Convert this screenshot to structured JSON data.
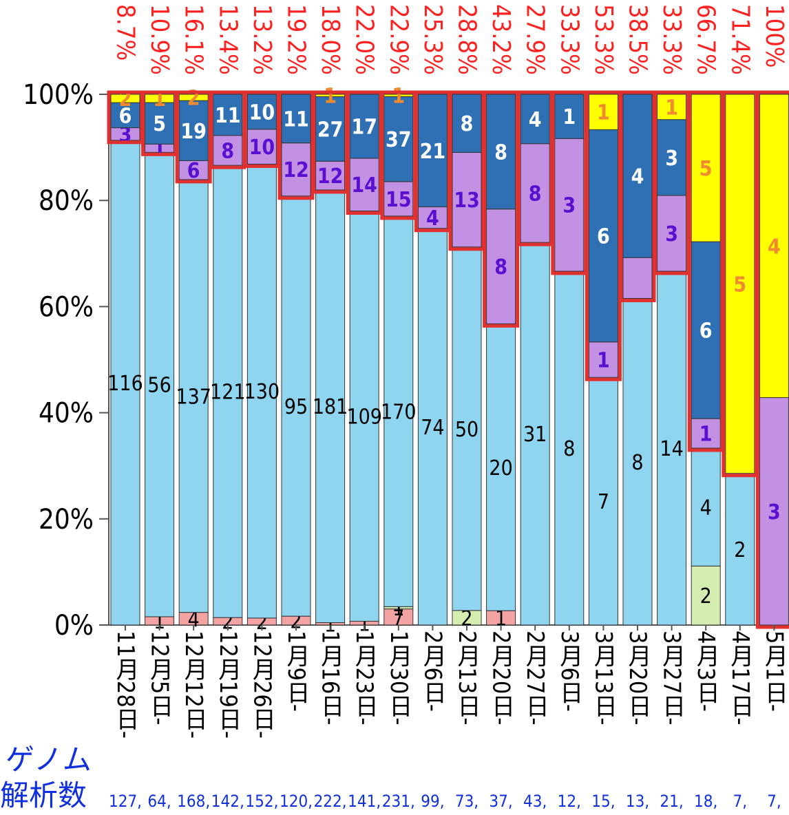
{
  "chart_data": {
    "type": "stacked_percent_bar",
    "categories": [
      "11月28日-",
      "12月5日-",
      "12月12日-",
      "12月19日-",
      "12月26日-",
      "1月9日-",
      "1月16日-",
      "1月23日-",
      "1月30日-",
      "2月6日-",
      "2月13日-",
      "2月20日-",
      "2月27日-",
      "3月6日-",
      "3月13日-",
      "3月20日-",
      "3月27日-",
      "4月3日-",
      "4月17日-",
      "5月1日-"
    ],
    "series": [
      {
        "color": "#f4a3a3",
        "label_color": "#000000",
        "values": [
          null,
          1,
          4,
          2,
          2,
          2,
          1,
          1,
          7,
          null,
          null,
          1,
          null,
          null,
          null,
          null,
          null,
          null,
          null,
          null
        ]
      },
      {
        "color": "#d6edb2",
        "label_color": "#000000",
        "values": [
          null,
          null,
          null,
          null,
          null,
          null,
          null,
          null,
          1,
          null,
          2,
          null,
          null,
          null,
          null,
          null,
          null,
          2,
          null,
          null
        ]
      },
      {
        "color": "#8fd5ef",
        "label_color": "#000000",
        "values": [
          116,
          56,
          137,
          121,
          130,
          95,
          181,
          109,
          170,
          74,
          50,
          20,
          31,
          8,
          7,
          8,
          14,
          4,
          2,
          null
        ]
      },
      {
        "color": "#c291e3",
        "label_color": "#5b10d0",
        "values": [
          3,
          1,
          6,
          8,
          10,
          12,
          12,
          14,
          15,
          4,
          13,
          8,
          8,
          3,
          1,
          1,
          3,
          1,
          null,
          3
        ],
        "value_labels": [
          "3",
          "1",
          "6",
          "8",
          "10",
          "12",
          "12",
          "14",
          "15",
          "4",
          "13",
          "8",
          "8",
          "3",
          "1",
          null,
          "3",
          "1",
          null,
          "3"
        ]
      },
      {
        "color": "#2f6fb3",
        "label_color": "#ffffff",
        "values": [
          6,
          5,
          19,
          11,
          10,
          11,
          27,
          17,
          37,
          21,
          8,
          8,
          4,
          1,
          6,
          4,
          3,
          6,
          null,
          null
        ]
      },
      {
        "color": "#ffff00",
        "label_color": "#f08a30",
        "values": [
          2,
          1,
          2,
          null,
          null,
          null,
          1,
          null,
          1,
          null,
          null,
          null,
          null,
          null,
          1,
          null,
          1,
          5,
          5,
          4
        ]
      }
    ],
    "percent_labels": [
      "8.7%",
      "10.9%",
      "16.1%",
      "13.4%",
      "13.2%",
      "19.2%",
      "18.0%",
      "22.0%",
      "22.9%",
      "25.3%",
      "28.8%",
      "43.2%",
      "27.9%",
      "33.3%",
      "53.3%",
      "38.5%",
      "33.3%",
      "66.7%",
      "71.4%",
      "100%"
    ],
    "total_title": [
      "ゲノム",
      "解析数"
    ],
    "total_labels": [
      "127,",
      "64,",
      "168,",
      "142,",
      "152,",
      "120,",
      "222,",
      "141,",
      "231,",
      "99,",
      "73,",
      "37,",
      "43,",
      "12,",
      "15,",
      "13,",
      "21,",
      "18,",
      "7,",
      "7,"
    ],
    "ylim": [
      0,
      100
    ],
    "yticks": [
      {
        "value": 0,
        "label": "0%"
      },
      {
        "value": 20,
        "label": "20%"
      },
      {
        "value": 40,
        "label": "40%"
      },
      {
        "value": 60,
        "label": "60%"
      },
      {
        "value": 80,
        "label": "80%"
      },
      {
        "value": 100,
        "label": "100%"
      }
    ]
  }
}
